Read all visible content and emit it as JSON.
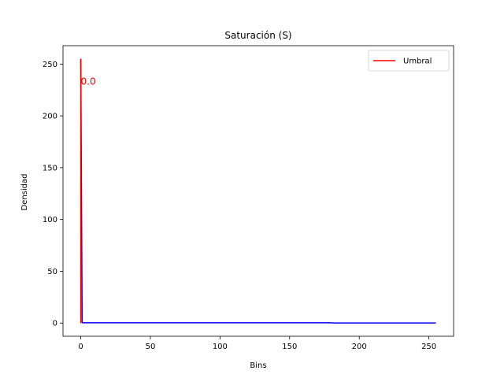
{
  "chart_data": {
    "type": "line",
    "title": "Saturación (S)",
    "xlabel": "Bins",
    "ylabel": "Densidad",
    "xlim": [
      -12.75,
      267.75
    ],
    "ylim": [
      -12.75,
      267.75
    ],
    "xticks": [
      0,
      50,
      100,
      150,
      200,
      250
    ],
    "yticks": [
      0,
      50,
      100,
      150,
      200,
      250
    ],
    "grid": false,
    "legend": {
      "location": "top-right",
      "entries": [
        "Umbral"
      ]
    },
    "colors": {
      "histogram": "#0000ff",
      "threshold": "#ff0000"
    },
    "series": [
      {
        "values": [
          [
            0,
            255
          ],
          [
            1,
            0.3
          ],
          [
            2,
            0.3
          ],
          [
            60,
            0.3
          ],
          [
            120,
            0.3
          ],
          [
            180,
            0.3
          ],
          [
            181,
            0.1
          ],
          [
            255,
            0.1
          ]
        ]
      },
      {
        "name": "Umbral",
        "values": [
          [
            0,
            0
          ],
          [
            0,
            255
          ]
        ]
      }
    ],
    "annotations": [
      {
        "text": "0.0",
        "x": 0,
        "y": 230,
        "color": "#ff0000"
      }
    ]
  }
}
